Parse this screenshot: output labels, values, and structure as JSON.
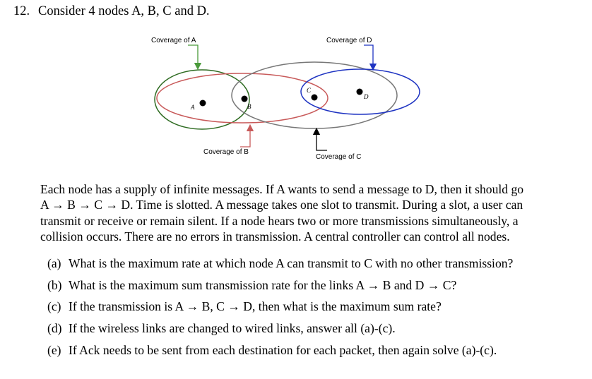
{
  "question": {
    "number": "12.",
    "intro": "Consider 4 nodes A, B, C and D."
  },
  "diagram": {
    "coverage_labels": {
      "A": "Coverage of A",
      "B": "Coverage of B",
      "C": "Coverage of C",
      "D": "Coverage of D"
    },
    "node_labels": {
      "A": "A",
      "B": "B",
      "C": "C",
      "D": "D"
    },
    "colors": {
      "A": "#2e6b21",
      "B": "#c85a5a",
      "C": "#777777",
      "D": "#1f34c2"
    }
  },
  "paragraph": [
    "Each node has a supply of infinite messages. If A wants to send a message to D, then it should go",
    "A → B → C → D. Time is slotted. A message takes one slot to transmit. During a slot, a user can",
    "transmit or receive or remain silent. If a node hears two or more transmissions simultaneously, a",
    "collision occurs. There are no errors in transmission. A central controller can control all nodes."
  ],
  "subquestions": [
    {
      "label": "(a)",
      "text": "What is the maximum rate at which node A can transmit to C with no other transmission?"
    },
    {
      "label": "(b)",
      "text": "What is the maximum sum transmission rate for the links A → B and D → C?"
    },
    {
      "label": "(c)",
      "text": "If the transmission is A → B, C → D, then what is the maximum sum rate?"
    },
    {
      "label": "(d)",
      "text": "If the wireless links are changed to wired links, answer all (a)-(c)."
    },
    {
      "label": "(e)",
      "text": "If Ack needs to be sent from each destination for each packet, then again solve (a)-(c)."
    }
  ]
}
